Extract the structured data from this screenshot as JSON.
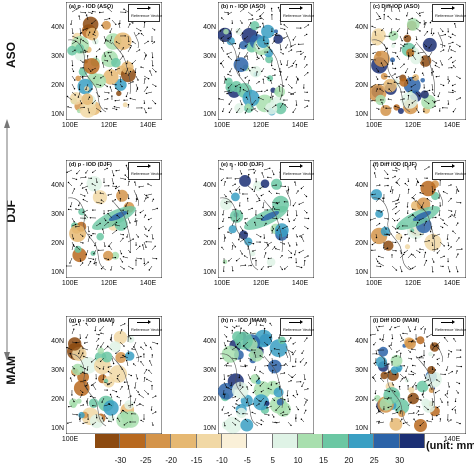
{
  "rows": [
    {
      "label": "ASO",
      "panels": [
        {
          "title": "(a) p - IOD (ASO)",
          "type": "p"
        },
        {
          "title": "(b) n - IOD (ASO)",
          "type": "n"
        },
        {
          "title": "(c) Diff IOD (ASO)",
          "type": "d"
        }
      ]
    },
    {
      "label": "DJF",
      "panels": [
        {
          "title": "(d) p - IOD (DJF)",
          "type": "p"
        },
        {
          "title": "(e) n - IOD (DJF)",
          "type": "n"
        },
        {
          "title": "(f) Diff IOD (DJF)",
          "type": "d"
        }
      ]
    },
    {
      "label": "MAM",
      "panels": [
        {
          "title": "(g) p - IOD (MAM)",
          "type": "p"
        },
        {
          "title": "(h) n - IOD (MAM)",
          "type": "n"
        },
        {
          "title": "(i) Diff IOD (MAM)",
          "type": "d"
        }
      ]
    }
  ],
  "reference_vector_label": "Reference Vector",
  "lat_labels": [
    "40N",
    "30N",
    "20N",
    "10N"
  ],
  "lon_labels": [
    "100E",
    "120E",
    "140E"
  ],
  "colorbar": {
    "ticks": [
      "-30",
      "-25",
      "-20",
      "-15",
      "-10",
      "-5",
      "5",
      "10",
      "15",
      "20",
      "25",
      "30"
    ],
    "colors": [
      "#8c4a10",
      "#b8691f",
      "#d4944a",
      "#e6b872",
      "#f1d8a5",
      "#faf0d8",
      "#ffffff",
      "#dff3e6",
      "#a8dfae",
      "#6bc7a3",
      "#3a9fc3",
      "#2b63a8",
      "#1b2f74"
    ],
    "unit": "(unit: mm"
  }
}
